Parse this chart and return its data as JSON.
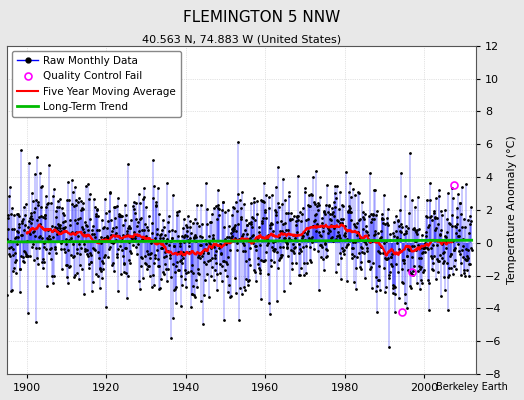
{
  "title": "FLEMINGTON 5 NNW",
  "subtitle": "40.563 N, 74.883 W (United States)",
  "ylabel": "Temperature Anomaly (°C)",
  "xlabel_ticks": [
    1900,
    1920,
    1940,
    1960,
    1980,
    2000
  ],
  "ylim": [
    -8,
    12
  ],
  "yticks": [
    -8,
    -6,
    -4,
    -2,
    0,
    2,
    4,
    6,
    8,
    10,
    12
  ],
  "xlim": [
    1895,
    2013
  ],
  "start_year": 1895,
  "end_year": 2012,
  "raw_color": "#0000ff",
  "moving_avg_color": "#ff0000",
  "trend_color": "#00bb00",
  "qc_fail_color": "#ff00ff",
  "background_color": "#e8e8e8",
  "plot_background": "#ffffff",
  "grid_color": "#c8c8c8",
  "watermark": "Berkeley Earth",
  "title_fontsize": 11,
  "subtitle_fontsize": 8,
  "legend_fontsize": 7.5,
  "ylabel_fontsize": 8,
  "tick_fontsize": 8
}
